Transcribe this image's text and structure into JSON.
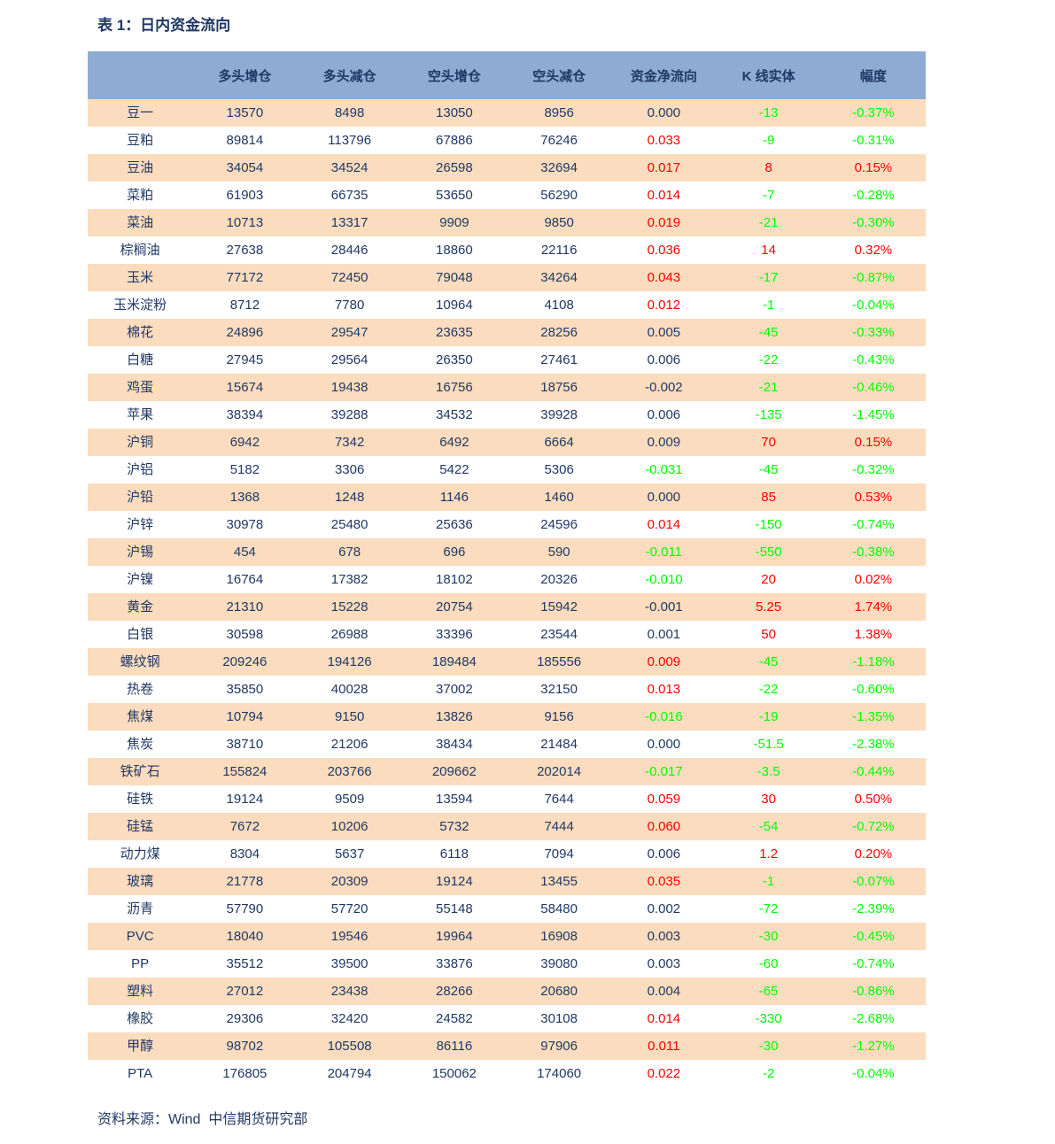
{
  "page": {
    "title": "表 1：日内资金流向",
    "source_note": "资料来源：Wind  中信期货研究部"
  },
  "colors": {
    "navy_text": "#1f3864",
    "red": "#ff0000",
    "green": "#00ff00",
    "header_bg": "#8eabd3",
    "row_stripe": "#fbdcbe",
    "row_plain": "#ffffff"
  },
  "table": {
    "column_headers": [
      "",
      "多头增仓",
      "多头减仓",
      "空头增仓",
      "空头减仓",
      "资金净流向",
      "K 线实体",
      "幅度"
    ],
    "rows": [
      {
        "name": "豆一",
        "long_add": "13570",
        "long_reduce": "8498",
        "short_add": "13050",
        "short_reduce": "8956",
        "net_flow": "0.000",
        "net_flow_color": "navy",
        "k_body": "-13",
        "k_body_color": "green",
        "pct_change": "-0.37%",
        "pct_change_color": "green"
      },
      {
        "name": "豆粕",
        "long_add": "89814",
        "long_reduce": "113796",
        "short_add": "67886",
        "short_reduce": "76246",
        "net_flow": "0.033",
        "net_flow_color": "red",
        "k_body": "-9",
        "k_body_color": "green",
        "pct_change": "-0.31%",
        "pct_change_color": "green"
      },
      {
        "name": "豆油",
        "long_add": "34054",
        "long_reduce": "34524",
        "short_add": "26598",
        "short_reduce": "32694",
        "net_flow": "0.017",
        "net_flow_color": "red",
        "k_body": "8",
        "k_body_color": "red",
        "pct_change": "0.15%",
        "pct_change_color": "red"
      },
      {
        "name": "菜粕",
        "long_add": "61903",
        "long_reduce": "66735",
        "short_add": "53650",
        "short_reduce": "56290",
        "net_flow": "0.014",
        "net_flow_color": "red",
        "k_body": "-7",
        "k_body_color": "green",
        "pct_change": "-0.28%",
        "pct_change_color": "green"
      },
      {
        "name": "菜油",
        "long_add": "10713",
        "long_reduce": "13317",
        "short_add": "9909",
        "short_reduce": "9850",
        "net_flow": "0.019",
        "net_flow_color": "red",
        "k_body": "-21",
        "k_body_color": "green",
        "pct_change": "-0.30%",
        "pct_change_color": "green"
      },
      {
        "name": "棕榈油",
        "long_add": "27638",
        "long_reduce": "28446",
        "short_add": "18860",
        "short_reduce": "22116",
        "net_flow": "0.036",
        "net_flow_color": "red",
        "k_body": "14",
        "k_body_color": "red",
        "pct_change": "0.32%",
        "pct_change_color": "red"
      },
      {
        "name": "玉米",
        "long_add": "77172",
        "long_reduce": "72450",
        "short_add": "79048",
        "short_reduce": "34264",
        "net_flow": "0.043",
        "net_flow_color": "red",
        "k_body": "-17",
        "k_body_color": "green",
        "pct_change": "-0.87%",
        "pct_change_color": "green"
      },
      {
        "name": "玉米淀粉",
        "long_add": "8712",
        "long_reduce": "7780",
        "short_add": "10964",
        "short_reduce": "4108",
        "net_flow": "0.012",
        "net_flow_color": "red",
        "k_body": "-1",
        "k_body_color": "green",
        "pct_change": "-0.04%",
        "pct_change_color": "green"
      },
      {
        "name": "棉花",
        "long_add": "24896",
        "long_reduce": "29547",
        "short_add": "23635",
        "short_reduce": "28256",
        "net_flow": "0.005",
        "net_flow_color": "navy",
        "k_body": "-45",
        "k_body_color": "green",
        "pct_change": "-0.33%",
        "pct_change_color": "green"
      },
      {
        "name": "白糖",
        "long_add": "27945",
        "long_reduce": "29564",
        "short_add": "26350",
        "short_reduce": "27461",
        "net_flow": "0.006",
        "net_flow_color": "navy",
        "k_body": "-22",
        "k_body_color": "green",
        "pct_change": "-0.43%",
        "pct_change_color": "green"
      },
      {
        "name": "鸡蛋",
        "long_add": "15674",
        "long_reduce": "19438",
        "short_add": "16756",
        "short_reduce": "18756",
        "net_flow": "-0.002",
        "net_flow_color": "navy",
        "k_body": "-21",
        "k_body_color": "green",
        "pct_change": "-0.46%",
        "pct_change_color": "green"
      },
      {
        "name": "苹果",
        "long_add": "38394",
        "long_reduce": "39288",
        "short_add": "34532",
        "short_reduce": "39928",
        "net_flow": "0.006",
        "net_flow_color": "navy",
        "k_body": "-135",
        "k_body_color": "green",
        "pct_change": "-1.45%",
        "pct_change_color": "green"
      },
      {
        "name": "沪铜",
        "long_add": "6942",
        "long_reduce": "7342",
        "short_add": "6492",
        "short_reduce": "6664",
        "net_flow": "0.009",
        "net_flow_color": "navy",
        "k_body": "70",
        "k_body_color": "red",
        "pct_change": "0.15%",
        "pct_change_color": "red"
      },
      {
        "name": "沪铝",
        "long_add": "5182",
        "long_reduce": "3306",
        "short_add": "5422",
        "short_reduce": "5306",
        "net_flow": "-0.031",
        "net_flow_color": "green",
        "k_body": "-45",
        "k_body_color": "green",
        "pct_change": "-0.32%",
        "pct_change_color": "green"
      },
      {
        "name": "沪铅",
        "long_add": "1368",
        "long_reduce": "1248",
        "short_add": "1146",
        "short_reduce": "1460",
        "net_flow": "0.000",
        "net_flow_color": "navy",
        "k_body": "85",
        "k_body_color": "red",
        "pct_change": "0.53%",
        "pct_change_color": "red"
      },
      {
        "name": "沪锌",
        "long_add": "30978",
        "long_reduce": "25480",
        "short_add": "25636",
        "short_reduce": "24596",
        "net_flow": "0.014",
        "net_flow_color": "red",
        "k_body": "-150",
        "k_body_color": "green",
        "pct_change": "-0.74%",
        "pct_change_color": "green"
      },
      {
        "name": "沪锡",
        "long_add": "454",
        "long_reduce": "678",
        "short_add": "696",
        "short_reduce": "590",
        "net_flow": "-0.011",
        "net_flow_color": "green",
        "k_body": "-550",
        "k_body_color": "green",
        "pct_change": "-0.38%",
        "pct_change_color": "green"
      },
      {
        "name": "沪镍",
        "long_add": "16764",
        "long_reduce": "17382",
        "short_add": "18102",
        "short_reduce": "20326",
        "net_flow": "-0.010",
        "net_flow_color": "green",
        "k_body": "20",
        "k_body_color": "red",
        "pct_change": "0.02%",
        "pct_change_color": "red"
      },
      {
        "name": "黄金",
        "long_add": "21310",
        "long_reduce": "15228",
        "short_add": "20754",
        "short_reduce": "15942",
        "net_flow": "-0.001",
        "net_flow_color": "navy",
        "k_body": "5.25",
        "k_body_color": "red",
        "pct_change": "1.74%",
        "pct_change_color": "red"
      },
      {
        "name": "白银",
        "long_add": "30598",
        "long_reduce": "26988",
        "short_add": "33396",
        "short_reduce": "23544",
        "net_flow": "0.001",
        "net_flow_color": "navy",
        "k_body": "50",
        "k_body_color": "red",
        "pct_change": "1.38%",
        "pct_change_color": "red"
      },
      {
        "name": "螺纹钢",
        "long_add": "209246",
        "long_reduce": "194126",
        "short_add": "189484",
        "short_reduce": "185556",
        "net_flow": "0.009",
        "net_flow_color": "red",
        "k_body": "-45",
        "k_body_color": "green",
        "pct_change": "-1.18%",
        "pct_change_color": "green"
      },
      {
        "name": "热卷",
        "long_add": "35850",
        "long_reduce": "40028",
        "short_add": "37002",
        "short_reduce": "32150",
        "net_flow": "0.013",
        "net_flow_color": "red",
        "k_body": "-22",
        "k_body_color": "green",
        "pct_change": "-0.60%",
        "pct_change_color": "green"
      },
      {
        "name": "焦煤",
        "long_add": "10794",
        "long_reduce": "9150",
        "short_add": "13826",
        "short_reduce": "9156",
        "net_flow": "-0.016",
        "net_flow_color": "green",
        "k_body": "-19",
        "k_body_color": "green",
        "pct_change": "-1.35%",
        "pct_change_color": "green"
      },
      {
        "name": "焦炭",
        "long_add": "38710",
        "long_reduce": "21206",
        "short_add": "38434",
        "short_reduce": "21484",
        "net_flow": "0.000",
        "net_flow_color": "navy",
        "k_body": "-51.5",
        "k_body_color": "green",
        "pct_change": "-2.38%",
        "pct_change_color": "green"
      },
      {
        "name": "铁矿石",
        "long_add": "155824",
        "long_reduce": "203766",
        "short_add": "209662",
        "short_reduce": "202014",
        "net_flow": "-0.017",
        "net_flow_color": "green",
        "k_body": "-3.5",
        "k_body_color": "green",
        "pct_change": "-0.44%",
        "pct_change_color": "green"
      },
      {
        "name": "硅铁",
        "long_add": "19124",
        "long_reduce": "9509",
        "short_add": "13594",
        "short_reduce": "7644",
        "net_flow": "0.059",
        "net_flow_color": "red",
        "k_body": "30",
        "k_body_color": "red",
        "pct_change": "0.50%",
        "pct_change_color": "red"
      },
      {
        "name": "硅锰",
        "long_add": "7672",
        "long_reduce": "10206",
        "short_add": "5732",
        "short_reduce": "7444",
        "net_flow": "0.060",
        "net_flow_color": "red",
        "k_body": "-54",
        "k_body_color": "green",
        "pct_change": "-0.72%",
        "pct_change_color": "green"
      },
      {
        "name": "动力煤",
        "long_add": "8304",
        "long_reduce": "5637",
        "short_add": "6118",
        "short_reduce": "7094",
        "net_flow": "0.006",
        "net_flow_color": "navy",
        "k_body": "1.2",
        "k_body_color": "red",
        "pct_change": "0.20%",
        "pct_change_color": "red"
      },
      {
        "name": "玻璃",
        "long_add": "21778",
        "long_reduce": "20309",
        "short_add": "19124",
        "short_reduce": "13455",
        "net_flow": "0.035",
        "net_flow_color": "red",
        "k_body": "-1",
        "k_body_color": "green",
        "pct_change": "-0.07%",
        "pct_change_color": "green"
      },
      {
        "name": "沥青",
        "long_add": "57790",
        "long_reduce": "57720",
        "short_add": "55148",
        "short_reduce": "58480",
        "net_flow": "0.002",
        "net_flow_color": "navy",
        "k_body": "-72",
        "k_body_color": "green",
        "pct_change": "-2.39%",
        "pct_change_color": "green"
      },
      {
        "name": "PVC",
        "long_add": "18040",
        "long_reduce": "19546",
        "short_add": "19964",
        "short_reduce": "16908",
        "net_flow": "0.003",
        "net_flow_color": "navy",
        "k_body": "-30",
        "k_body_color": "green",
        "pct_change": "-0.45%",
        "pct_change_color": "green"
      },
      {
        "name": "PP",
        "long_add": "35512",
        "long_reduce": "39500",
        "short_add": "33876",
        "short_reduce": "39080",
        "net_flow": "0.003",
        "net_flow_color": "navy",
        "k_body": "-60",
        "k_body_color": "green",
        "pct_change": "-0.74%",
        "pct_change_color": "green"
      },
      {
        "name": "塑料",
        "long_add": "27012",
        "long_reduce": "23438",
        "short_add": "28266",
        "short_reduce": "20680",
        "net_flow": "0.004",
        "net_flow_color": "navy",
        "k_body": "-65",
        "k_body_color": "green",
        "pct_change": "-0.86%",
        "pct_change_color": "green"
      },
      {
        "name": "橡胶",
        "long_add": "29306",
        "long_reduce": "32420",
        "short_add": "24582",
        "short_reduce": "30108",
        "net_flow": "0.014",
        "net_flow_color": "red",
        "k_body": "-330",
        "k_body_color": "green",
        "pct_change": "-2.68%",
        "pct_change_color": "green"
      },
      {
        "name": "甲醇",
        "long_add": "98702",
        "long_reduce": "105508",
        "short_add": "86116",
        "short_reduce": "97906",
        "net_flow": "0.011",
        "net_flow_color": "red",
        "k_body": "-30",
        "k_body_color": "green",
        "pct_change": "-1.27%",
        "pct_change_color": "green"
      },
      {
        "name": "PTA",
        "long_add": "176805",
        "long_reduce": "204794",
        "short_add": "150062",
        "short_reduce": "174060",
        "net_flow": "0.022",
        "net_flow_color": "red",
        "k_body": "-2",
        "k_body_color": "green",
        "pct_change": "-0.04%",
        "pct_change_color": "green"
      }
    ]
  }
}
